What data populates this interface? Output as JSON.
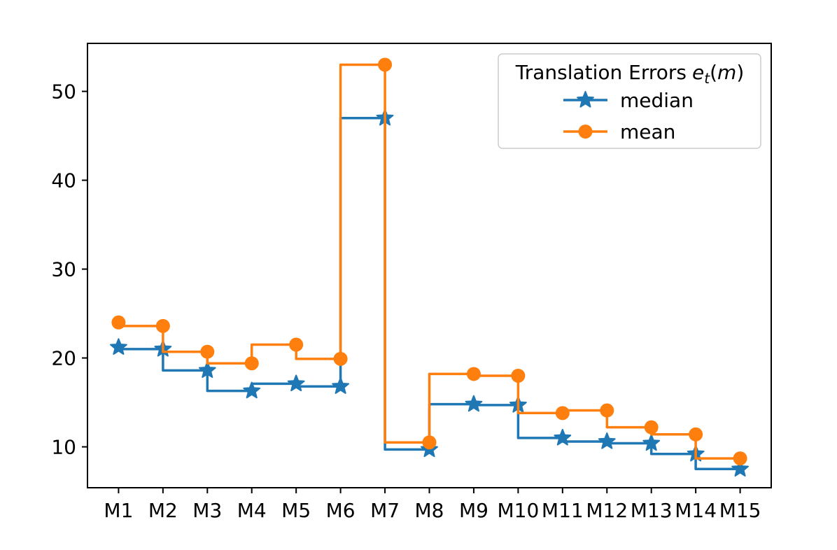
{
  "chart_data": {
    "type": "line",
    "subtype": "step-pre",
    "title": "",
    "categories": [
      "M1",
      "M2",
      "M3",
      "M4",
      "M5",
      "M6",
      "M7",
      "M8",
      "M9",
      "M10",
      "M11",
      "M12",
      "M13",
      "M14",
      "M15"
    ],
    "series": [
      {
        "name": "median",
        "marker": "star",
        "color": "#1f77b4",
        "values": [
          21.2,
          21.0,
          18.6,
          16.3,
          17.1,
          16.8,
          47.0,
          9.7,
          14.8,
          14.7,
          11.0,
          10.6,
          10.4,
          9.2,
          7.5
        ]
      },
      {
        "name": "mean",
        "marker": "circle",
        "color": "#ff7f0e",
        "values": [
          24.0,
          23.6,
          20.7,
          19.4,
          21.5,
          19.9,
          53.0,
          10.5,
          18.2,
          18.0,
          13.8,
          14.1,
          12.2,
          11.4,
          8.7
        ]
      }
    ],
    "yticks": [
      10,
      20,
      30,
      40,
      50
    ],
    "ylim": [
      5.4,
      55.4
    ],
    "xlim": [
      -0.7,
      14.7
    ],
    "grid": false,
    "legend": {
      "position": "upper right",
      "title_prefix": "Translation Errors",
      "title_var": "e",
      "title_sub": "t",
      "title_open": "(",
      "title_arg": "m",
      "title_close": ")"
    }
  }
}
